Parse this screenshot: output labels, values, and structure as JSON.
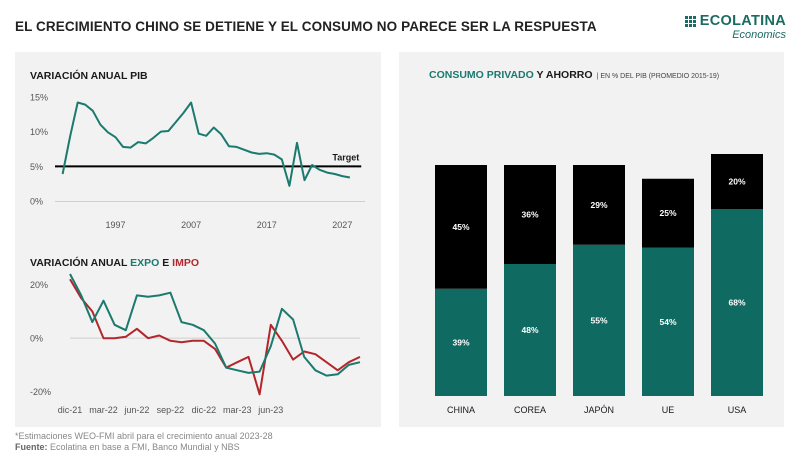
{
  "header": {
    "title": "EL CRECIMIENTO CHINO SE DETIENE Y EL CONSUMO NO PARECE SER LA RESPUESTA",
    "brand": "ECOLATINA",
    "brand_sub": "Economics"
  },
  "footer": {
    "note": "*Estimaciones WEO-FMI abril para el crecimiento anual 2023-28",
    "source_label": "Fuente:",
    "source_text": "Ecolatina en base a FMI, Banco Mundial y NBS"
  },
  "colors": {
    "teal": "#1b7a6e",
    "red": "#b3262b",
    "black": "#000000",
    "teal_bar": "#0f6b62"
  },
  "chart_data": [
    {
      "id": "pib",
      "type": "line",
      "title": "VARIACIÓN ANUAL PIB",
      "x_tick_labels": [
        "1997",
        "2007",
        "2017",
        "2027"
      ],
      "x_ticks": [
        1997,
        2007,
        2017,
        2027
      ],
      "xlim": [
        1989,
        2030
      ],
      "ylim": [
        -1,
        16
      ],
      "y_ticks": [
        0,
        5,
        10,
        15
      ],
      "y_tick_labels": [
        "0%",
        "5%",
        "10%",
        "15%"
      ],
      "target": {
        "label": "Target",
        "value": 5,
        "x_from": 1989,
        "x_to": 2029.5
      },
      "series": [
        {
          "name": "PIB China",
          "x": [
            1990,
            1991,
            1992,
            1993,
            1994,
            1995,
            1996,
            1997,
            1998,
            1999,
            2000,
            2001,
            2002,
            2003,
            2004,
            2005,
            2006,
            2007,
            2008,
            2009,
            2010,
            2011,
            2012,
            2013,
            2014,
            2015,
            2016,
            2017,
            2018,
            2019,
            2020,
            2021,
            2022,
            2023,
            2024,
            2025,
            2026,
            2027,
            2028
          ],
          "values": [
            3.9,
            9.3,
            14.2,
            13.9,
            13.0,
            11.0,
            9.9,
            9.2,
            7.8,
            7.7,
            8.5,
            8.3,
            9.1,
            10.0,
            10.1,
            11.4,
            12.7,
            14.2,
            9.7,
            9.4,
            10.6,
            9.6,
            7.9,
            7.8,
            7.4,
            7.0,
            6.8,
            6.9,
            6.7,
            6.0,
            2.2,
            8.4,
            3.0,
            5.2,
            4.5,
            4.1,
            3.9,
            3.6,
            3.4
          ]
        }
      ]
    },
    {
      "id": "comercio",
      "type": "line",
      "title_parts": [
        "VARIACIÓN ANUAL ",
        "EXPO",
        " E ",
        "IMPO"
      ],
      "x_tick_labels": [
        "dic-21",
        "mar-22",
        "jun-22",
        "sep-22",
        "dic-22",
        "mar-23",
        "jun-23"
      ],
      "ylim": [
        -22,
        24
      ],
      "y_ticks": [
        20,
        0,
        -20
      ],
      "y_tick_labels": [
        "20%",
        "0%",
        "-20%"
      ],
      "series": [
        {
          "name": "EXPO",
          "values": [
            24,
            16,
            6,
            14,
            5,
            3,
            16,
            15.5,
            16,
            17,
            6,
            5,
            3,
            -2,
            -11,
            -12,
            -13,
            -12.5,
            -3,
            11,
            7,
            -7,
            -12,
            -14,
            -13.5,
            -10,
            -9
          ]
        },
        {
          "name": "IMPO",
          "values": [
            22,
            15,
            10,
            0,
            0,
            0.5,
            3.5,
            0,
            1,
            -1,
            -1.5,
            -1,
            -1,
            -4,
            -11,
            -9,
            -7,
            -21,
            5,
            -1,
            -8,
            -5,
            -6,
            -9,
            -12,
            -9,
            -7
          ]
        }
      ]
    },
    {
      "id": "consumo",
      "type": "bar",
      "title": "CONSUMO PRIVADO",
      "title_and": " Y ",
      "title_ahorro": "AHORRO",
      "subtitle": "| EN % DEL PIB (PROMEDIO 2015-19)",
      "stacked": true,
      "categories": [
        "CHINA",
        "COREA",
        "JAPÓN",
        "UE",
        "USA"
      ],
      "series": [
        {
          "name": "Consumo privado",
          "values": [
            39,
            48,
            55,
            54,
            68
          ],
          "labels": [
            "39%",
            "48%",
            "55%",
            "54%",
            "68%"
          ]
        },
        {
          "name": "Ahorro",
          "values": [
            45,
            36,
            29,
            25,
            20
          ],
          "labels": [
            "45%",
            "36%",
            "29%",
            "25%",
            "20%"
          ]
        }
      ],
      "ylim": [
        0,
        100
      ]
    }
  ]
}
